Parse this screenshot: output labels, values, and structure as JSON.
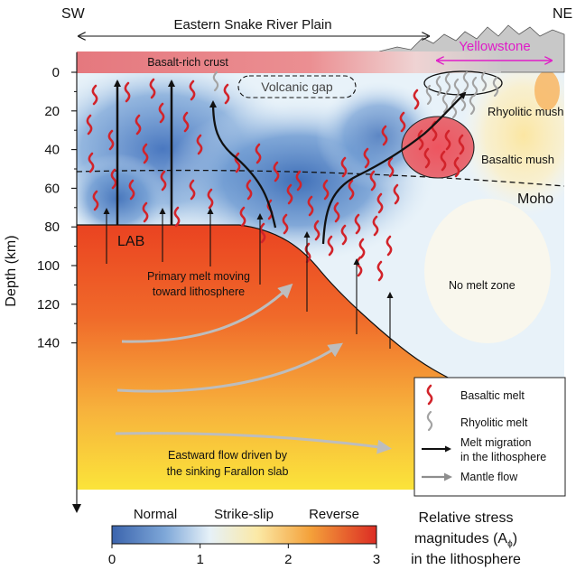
{
  "corners": {
    "left": "SW",
    "right": "NE"
  },
  "top_labels": {
    "plain": "Eastern Snake River Plain",
    "yellowstone": "Yellowstone"
  },
  "labels": {
    "crust": "Basalt-rich crust",
    "volcanic_gap": "Volcanic gap",
    "rhyolitic_mush": "Rhyolitic mush",
    "basaltic_mush": "Basaltic mush",
    "moho": "Moho",
    "lab": "LAB",
    "primary_melt": [
      "Primary melt moving",
      "toward lithosphere"
    ],
    "no_melt": "No melt zone",
    "eastward_flow": [
      "Eastward flow driven by",
      "the sinking Farallon slab"
    ]
  },
  "axis": {
    "ylabel": "Depth (km)",
    "ticks": [
      "0",
      "20",
      "40",
      "60",
      "80",
      "100",
      "120",
      "140"
    ]
  },
  "legend": [
    {
      "key": "basaltic",
      "label": [
        "Basaltic melt"
      ]
    },
    {
      "key": "rhyolitic",
      "label": [
        "Rhyolitic melt"
      ]
    },
    {
      "key": "migration",
      "label": [
        "Melt migration",
        "in the lithosphere"
      ]
    },
    {
      "key": "mantle",
      "label": [
        "Mantle flow"
      ]
    }
  ],
  "colorbar": {
    "categories": [
      "Normal",
      "Strike-slip",
      "Reverse"
    ],
    "ticks": [
      "0",
      "1",
      "2",
      "3"
    ],
    "title": [
      "Relative stress",
      "magnitudes (A",
      "ϕ",
      ")",
      "in the lithosphere"
    ]
  },
  "colors": {
    "basaltic_melt": "#d2232a",
    "rhyolitic_melt": "#9a9a9a",
    "mantle_flow": "#b8b8b8",
    "yellowstone": "#e01cc8",
    "crust": "#e57b80",
    "lithosphere_blue": "#4d7fc4"
  }
}
